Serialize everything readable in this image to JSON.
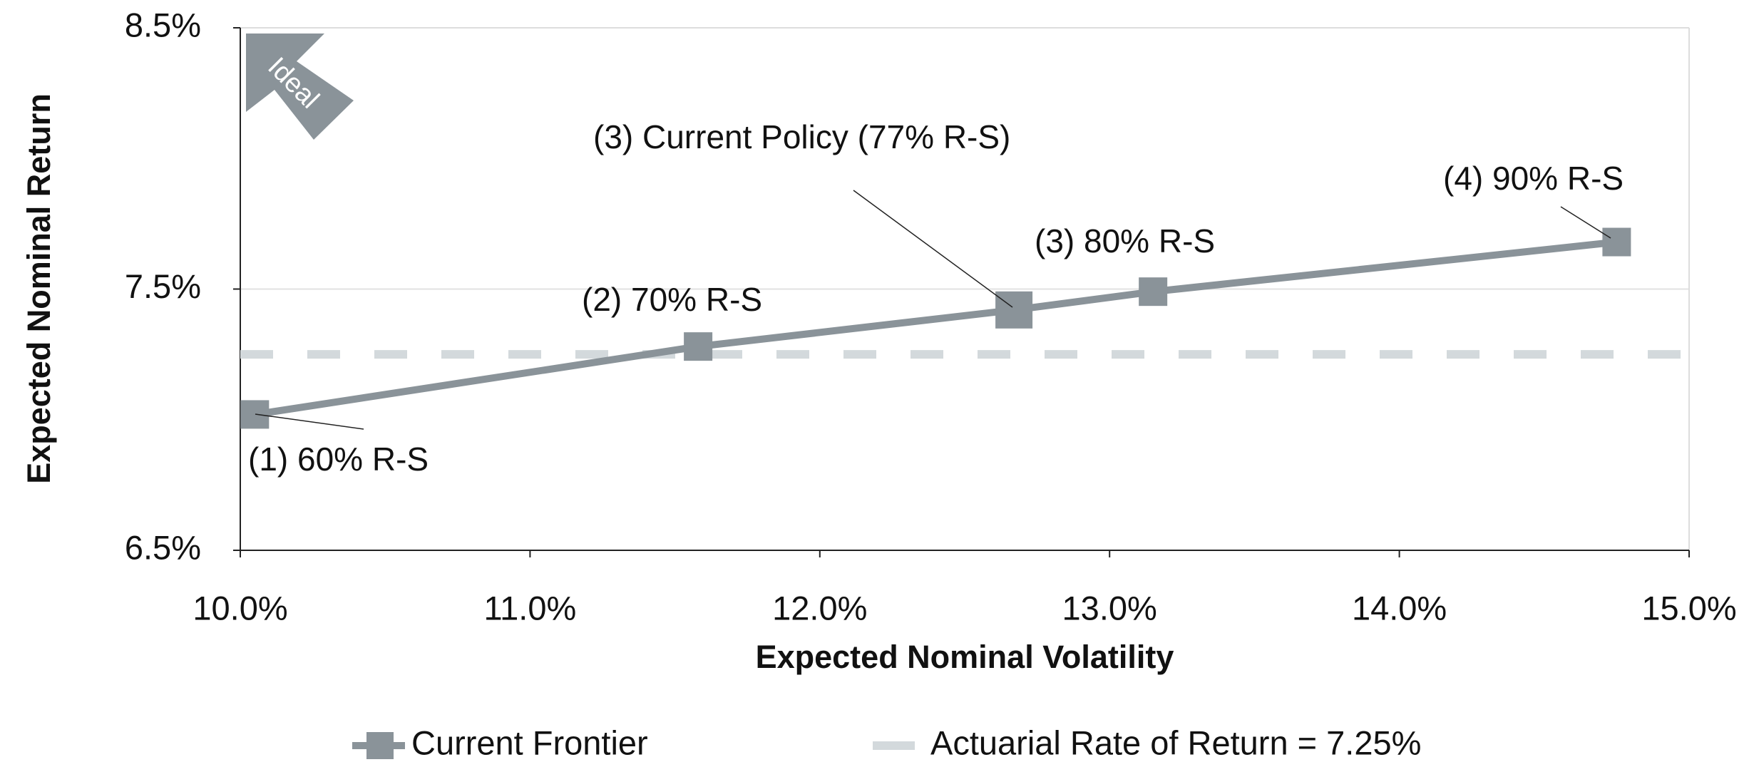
{
  "chart_data": {
    "type": "line",
    "x_label": "Expected Nominal Volatility",
    "y_label": "Expected Nominal Return",
    "ideal_label": "Ideal",
    "xlim": [
      10,
      15
    ],
    "xticks": [
      {
        "value": 10,
        "label": "10.0%"
      },
      {
        "value": 11,
        "label": "11.0%"
      },
      {
        "value": 12,
        "label": "12.0%"
      },
      {
        "value": 13,
        "label": "13.0%"
      },
      {
        "value": 14,
        "label": "14.0%"
      },
      {
        "value": 15,
        "label": "15.0%"
      }
    ],
    "ylim": [
      6.5,
      8.5
    ],
    "yticks": [
      {
        "value": 6.5,
        "label": "6.5%"
      },
      {
        "value": 7.5,
        "label": "7.5%"
      },
      {
        "value": 8.5,
        "label": "8.5%"
      }
    ],
    "grid": true,
    "series": [
      {
        "name": "Current Frontier",
        "color": "#8a9399",
        "x": [
          10.05,
          11.58,
          12.67,
          13.15,
          14.75
        ],
        "values": [
          7.02,
          7.28,
          7.42,
          7.49,
          7.68
        ]
      },
      {
        "name": "Actuarial Rate of Return = 7.25%",
        "color": "#d3d9dc",
        "dashed": true,
        "value": 7.25
      }
    ],
    "annotations": [
      "(1) 60% R-S",
      "(2) 70% R-S",
      "(3) Current Policy (77% R-S)",
      "(3) 80% R-S",
      "(4) 90% R-S"
    ],
    "legend": "bottom"
  }
}
